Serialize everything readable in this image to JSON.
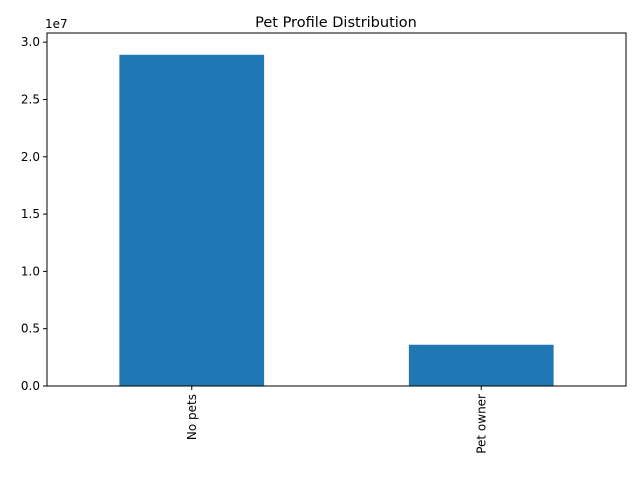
{
  "chart_data": {
    "type": "bar",
    "title": "Pet Profile Distribution",
    "xlabel": "",
    "ylabel": "",
    "categories": [
      "No pets",
      "Pet owner"
    ],
    "values": [
      28900000,
      3600000
    ],
    "ylim": [
      0,
      30800000
    ],
    "yticks": [
      0,
      5000000,
      10000000,
      15000000,
      20000000,
      25000000,
      30000000
    ],
    "ytick_labels": [
      "0.0",
      "0.5",
      "1.0",
      "1.5",
      "2.0",
      "2.5",
      "3.0"
    ],
    "y_offset_label": "1e7",
    "bar_color": "#1f77b4",
    "grid": false,
    "legend": "none"
  }
}
